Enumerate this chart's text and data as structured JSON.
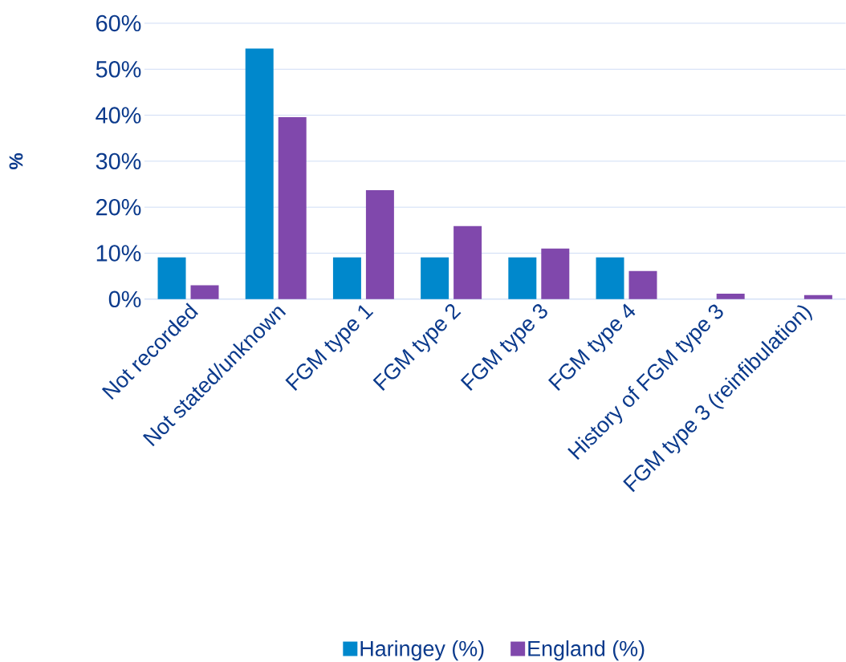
{
  "chart_data": {
    "type": "bar",
    "ylabel": "%",
    "categories": [
      "Not recorded",
      "Not stated/unknown",
      "FGM type 1",
      "FGM type 2",
      "FGM type 3",
      "FGM type 4",
      "History of FGM type 3",
      "FGM type 3 (reinfibulation)"
    ],
    "series": [
      {
        "name": "Haringey (%)",
        "color": "#0088cc",
        "values": [
          9.1,
          54.5,
          9.1,
          9.1,
          9.1,
          9.1,
          0,
          0
        ]
      },
      {
        "name": "England (%)",
        "color": "#8048ac",
        "values": [
          3.0,
          39.6,
          23.7,
          15.9,
          11.0,
          6.1,
          1.2,
          0.9
        ]
      }
    ],
    "ylim": [
      0,
      60
    ],
    "yticks": [
      {
        "value": 0,
        "label": "0%"
      },
      {
        "value": 10,
        "label": "10%"
      },
      {
        "value": 20,
        "label": "20%"
      },
      {
        "value": 30,
        "label": "30%"
      },
      {
        "value": 40,
        "label": "40%"
      },
      {
        "value": 50,
        "label": "50%"
      },
      {
        "value": 60,
        "label": "60%"
      }
    ],
    "grid": "y",
    "legend": "bottom"
  }
}
